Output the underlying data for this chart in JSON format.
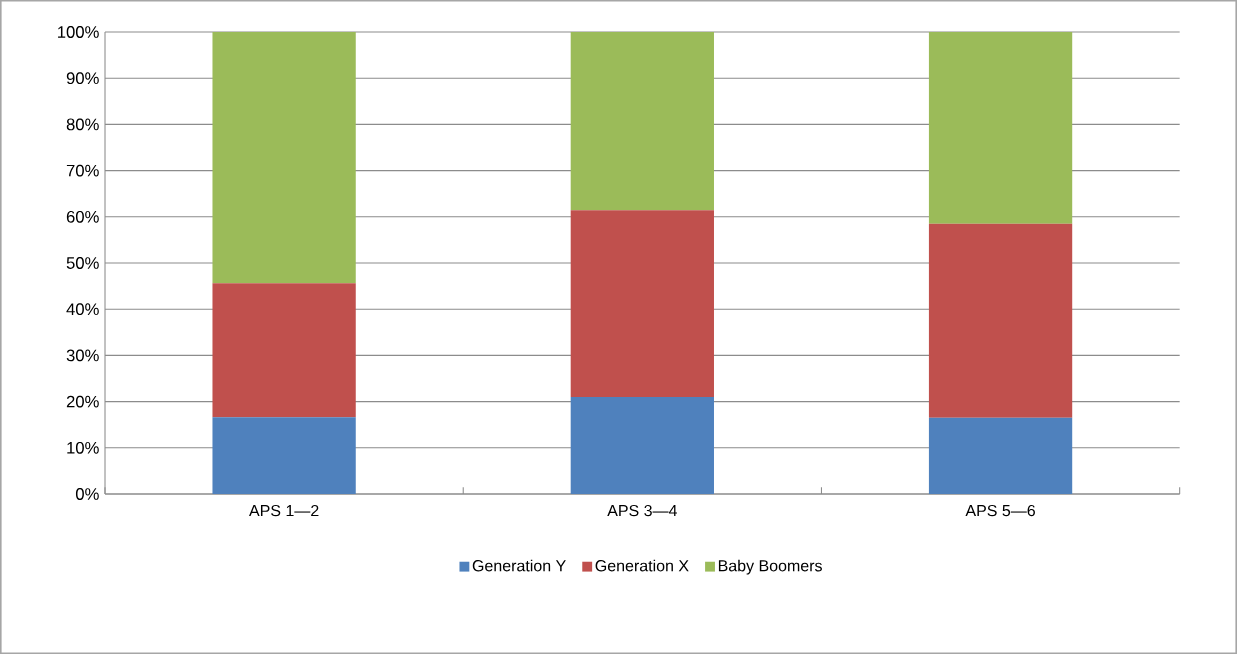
{
  "chart_data": {
    "type": "bar",
    "stacked": true,
    "categories": [
      "APS 1—2",
      "APS 3—4",
      "APS 5—6"
    ],
    "series": [
      {
        "name": "Generation Y",
        "color": "#4f81bd",
        "values": [
          16.6,
          21.0,
          16.5
        ]
      },
      {
        "name": "Generation X",
        "color": "#c0504d",
        "values": [
          29.0,
          40.4,
          42.0
        ]
      },
      {
        "name": "Baby Boomers",
        "color": "#9bbb59",
        "values": [
          54.4,
          38.6,
          41.5
        ]
      }
    ],
    "ylim": [
      0,
      100
    ],
    "yticks": [
      {
        "value": 0,
        "label": "0%"
      },
      {
        "value": 10,
        "label": "10%"
      },
      {
        "value": 20,
        "label": "20%"
      },
      {
        "value": 30,
        "label": "30%"
      },
      {
        "value": 40,
        "label": "40%"
      },
      {
        "value": 50,
        "label": "50%"
      },
      {
        "value": 60,
        "label": "60%"
      },
      {
        "value": 70,
        "label": "70%"
      },
      {
        "value": 80,
        "label": "80%"
      },
      {
        "value": 90,
        "label": "90%"
      },
      {
        "value": 100,
        "label": "100%"
      }
    ],
    "grid": "y",
    "legend": "bottom"
  }
}
